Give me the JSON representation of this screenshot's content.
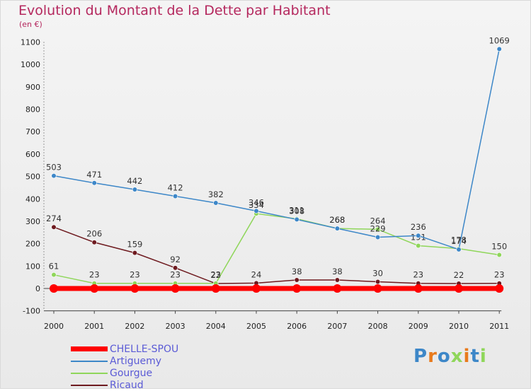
{
  "chart_data": {
    "type": "line",
    "title": "Evolution du Montant de la Dette par Habitant",
    "subtitle": "(en €)",
    "xlabel": "",
    "ylabel": "",
    "x": [
      "2000",
      "2001",
      "2002",
      "2003",
      "2004",
      "2005",
      "2006",
      "2007",
      "2008",
      "2009",
      "2010",
      "2011"
    ],
    "ylim": [
      -100,
      1100
    ],
    "yticks": [
      "-100",
      "0",
      "100",
      "200",
      "300",
      "400",
      "500",
      "600",
      "700",
      "800",
      "900",
      "1000",
      "1100"
    ],
    "grid": false,
    "legend_position": "bottom-left",
    "series": [
      {
        "name": "CHELLE-SPOU",
        "color": "#ff0000",
        "values": [
          0,
          0,
          0,
          0,
          0,
          0,
          0,
          0,
          0,
          0,
          0,
          0
        ],
        "labels": [
          "",
          "",
          "",
          "",
          "",
          "",
          "",
          "",
          "",
          "",
          "",
          ""
        ]
      },
      {
        "name": "Artiguemy",
        "color": "#3d87c8",
        "values": [
          503,
          471,
          442,
          412,
          382,
          346,
          308,
          268,
          229,
          236,
          174,
          1069
        ],
        "labels": [
          "503",
          "471",
          "442",
          "412",
          "382",
          "346",
          "308",
          "268",
          "229",
          "236",
          "174",
          "1069"
        ]
      },
      {
        "name": "Gourgue",
        "color": "#8fd65a",
        "values": [
          61,
          23,
          23,
          23,
          23,
          334,
          311,
          268,
          264,
          191,
          178,
          150
        ],
        "labels": [
          "61",
          "23",
          "23",
          "23",
          "23",
          "334",
          "311",
          "268",
          "264",
          "191",
          "178",
          "150"
        ]
      },
      {
        "name": "Ricaud",
        "color": "#6e1a1f",
        "values": [
          274,
          206,
          159,
          92,
          22,
          24,
          38,
          38,
          30,
          23,
          22,
          23
        ],
        "labels": [
          "274",
          "206",
          "159",
          "92",
          "22",
          "24",
          "38",
          "38",
          "30",
          "23",
          "22",
          "23"
        ]
      }
    ]
  },
  "logo": {
    "text": "Proxiti",
    "letters": [
      {
        "ch": "P",
        "color": "#3d87c8"
      },
      {
        "ch": "r",
        "color": "#e87a1c"
      },
      {
        "ch": "o",
        "color": "#3d87c8"
      },
      {
        "ch": "x",
        "color": "#8fd65a"
      },
      {
        "ch": "i",
        "color": "#e87a1c"
      },
      {
        "ch": "t",
        "color": "#3d87c8"
      },
      {
        "ch": "i",
        "color": "#8fd65a"
      }
    ]
  }
}
